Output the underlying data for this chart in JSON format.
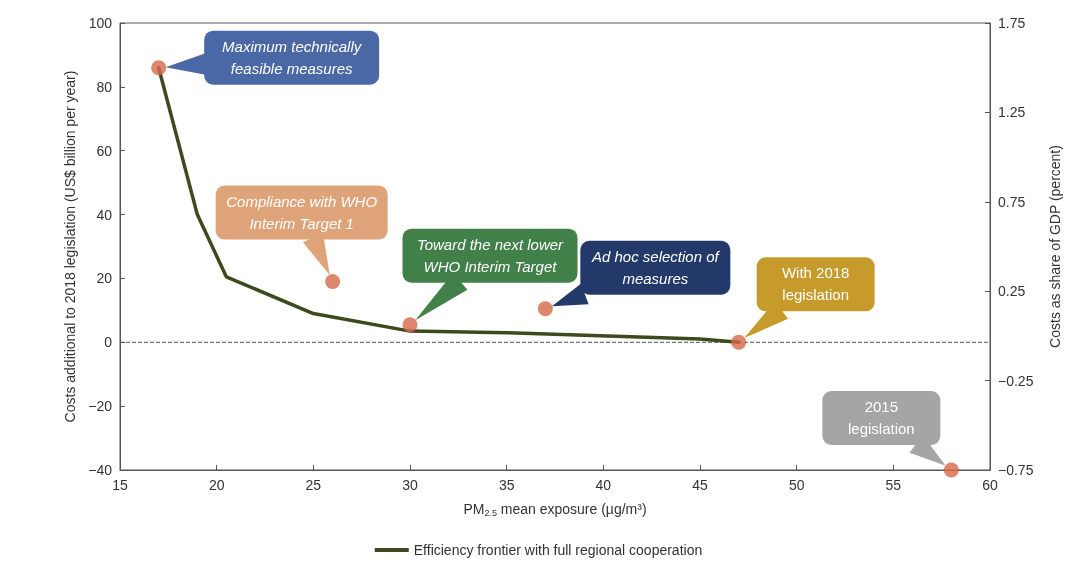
{
  "chart_data": {
    "type": "line",
    "xlabel": "PM$_{2.5}$ mean exposure (µg/m³)",
    "ylabel": "Costs additional to 2018 legislation (US$ billion per year)",
    "y2label": "Costs as share of GDP (percent)",
    "xlim": [
      15,
      60
    ],
    "xticks": [
      15,
      20,
      25,
      30,
      35,
      40,
      45,
      50,
      55,
      60
    ],
    "ylim": [
      -40,
      100
    ],
    "yticks": [
      -40,
      -20,
      0,
      20,
      40,
      60,
      80,
      100
    ],
    "y2lim": [
      -0.75,
      1.75
    ],
    "y2ticks": [
      -0.75,
      -0.25,
      0.25,
      0.75,
      1.25,
      1.75
    ],
    "series": [
      {
        "name": "Efficiency frontier with full regional cooperation",
        "type": "line",
        "marker": "none",
        "color": "#3d4a1e",
        "x": [
          17,
          19,
          20.5,
          25,
          30,
          35,
          45,
          47
        ],
        "values": [
          86,
          40,
          20.5,
          9,
          3.5,
          3,
          1,
          0
        ]
      },
      {
        "type": "scatter",
        "marker": "circle",
        "color": "#d6694a",
        "x": [
          17,
          26,
          30,
          37,
          47,
          58
        ],
        "values": [
          86,
          19,
          5.5,
          10.5,
          0,
          -40
        ]
      }
    ],
    "ref_lines": [
      {
        "axis": "y",
        "value": 0,
        "line_style": "dashed",
        "color": "#555555"
      }
    ],
    "annotations": [
      "Maximum technically feasible measures",
      "Compliance with WHO Interim Target 1",
      "Toward the next lower WHO Interim Target",
      "Ad hoc selection of measures",
      "With 2018 legislation",
      "2015 legislation"
    ],
    "grid": false,
    "legend": "bottom",
    "line_style": "solid"
  }
}
